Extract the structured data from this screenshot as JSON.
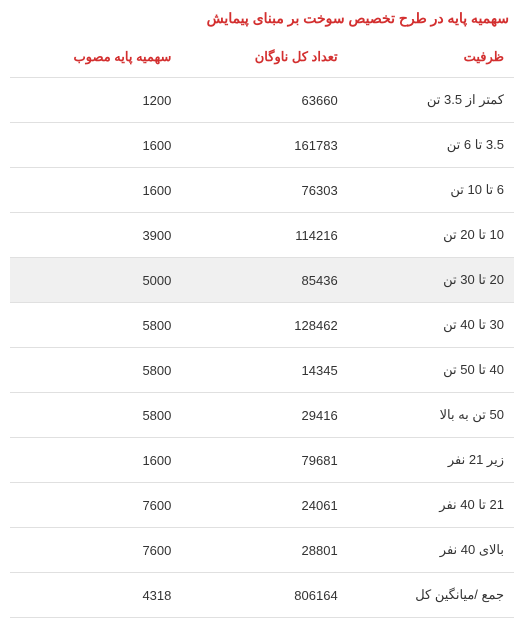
{
  "title": "سهمیه پایه در طرح تخصیص سوخت بر مبنای پیمایش",
  "table": {
    "type": "table",
    "background_color": "#ffffff",
    "border_color": "#e0e0e0",
    "header_color": "#d32f2f",
    "text_color": "#333333",
    "header_fontsize": 13,
    "cell_fontsize": 13,
    "columns": [
      {
        "key": "capacity",
        "label": "ظرفیت",
        "width": "33%",
        "align": "right"
      },
      {
        "key": "fleet_count",
        "label": "تعداد کل ناوگان",
        "width": "33%",
        "align": "right"
      },
      {
        "key": "base_quota",
        "label": "سهمیه پایه مصوب",
        "width": "34%",
        "align": "right"
      }
    ],
    "rows": [
      {
        "capacity": "کمتر از 3.5 تن",
        "fleet_count": "63660",
        "base_quota": "1200",
        "highlighted": false
      },
      {
        "capacity": "3.5 تا 6 تن",
        "fleet_count": "161783",
        "base_quota": "1600",
        "highlighted": false
      },
      {
        "capacity": "6 تا 10 تن",
        "fleet_count": "76303",
        "base_quota": "1600",
        "highlighted": false
      },
      {
        "capacity": "10 تا 20 تن",
        "fleet_count": "114216",
        "base_quota": "3900",
        "highlighted": false
      },
      {
        "capacity": "20 تا 30 تن",
        "fleet_count": "85436",
        "base_quota": "5000",
        "highlighted": true
      },
      {
        "capacity": "30 تا 40 تن",
        "fleet_count": "128462",
        "base_quota": "5800",
        "highlighted": false
      },
      {
        "capacity": "40 تا 50 تن",
        "fleet_count": "14345",
        "base_quota": "5800",
        "highlighted": false
      },
      {
        "capacity": "50 تن به بالا",
        "fleet_count": "29416",
        "base_quota": "5800",
        "highlighted": false
      },
      {
        "capacity": "زیر 21 نفر",
        "fleet_count": "79681",
        "base_quota": "1600",
        "highlighted": false
      },
      {
        "capacity": "21 تا 40 نفر",
        "fleet_count": "24061",
        "base_quota": "7600",
        "highlighted": false
      },
      {
        "capacity": "بالای 40 نفر",
        "fleet_count": "28801",
        "base_quota": "7600",
        "highlighted": false
      },
      {
        "capacity": "جمع /میانگین کل",
        "fleet_count": "806164",
        "base_quota": "4318",
        "highlighted": false
      }
    ]
  }
}
